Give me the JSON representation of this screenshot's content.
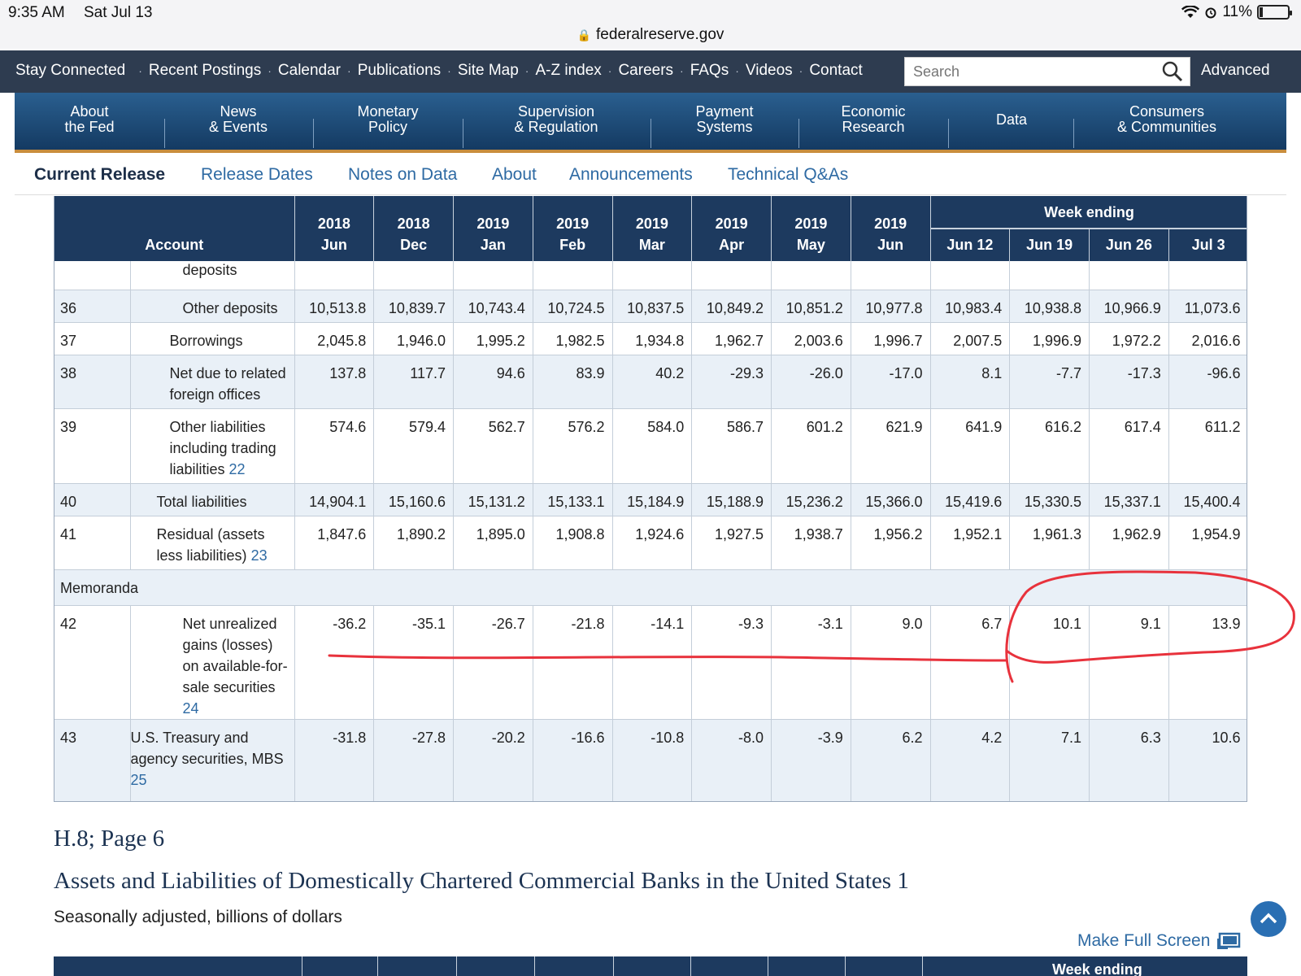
{
  "status_bar": {
    "time": "9:35 AM",
    "date": "Sat Jul 13",
    "battery": "11%"
  },
  "url": "federalreserve.gov",
  "utility_nav": {
    "links": [
      "Stay Connected",
      "Recent Postings",
      "Calendar",
      "Publications",
      "Site Map",
      "A-Z index",
      "Careers",
      "FAQs",
      "Videos",
      "Contact"
    ],
    "search_placeholder": "Search",
    "advanced": "Advanced"
  },
  "main_nav": [
    {
      "line1": "About",
      "line2": "the Fed"
    },
    {
      "line1": "News",
      "line2": "& Events"
    },
    {
      "line1": "Monetary",
      "line2": "Policy"
    },
    {
      "line1": "Supervision",
      "line2": "& Regulation"
    },
    {
      "line1": "Payment",
      "line2": "Systems"
    },
    {
      "line1": "Economic",
      "line2": "Research"
    },
    {
      "line1": "Data",
      "line2": ""
    },
    {
      "line1": "Consumers",
      "line2": "& Communities"
    }
  ],
  "sub_nav": [
    "Current Release",
    "Release Dates",
    "Notes on Data",
    "About",
    "Announcements",
    "Technical Q&As"
  ],
  "table": {
    "account_header": "Account",
    "week_ending_header": "Week ending",
    "month_columns": [
      {
        "year": "2018",
        "month": "Jun"
      },
      {
        "year": "2018",
        "month": "Dec"
      },
      {
        "year": "2019",
        "month": "Jan"
      },
      {
        "year": "2019",
        "month": "Feb"
      },
      {
        "year": "2019",
        "month": "Mar"
      },
      {
        "year": "2019",
        "month": "Apr"
      },
      {
        "year": "2019",
        "month": "May"
      },
      {
        "year": "2019",
        "month": "Jun"
      }
    ],
    "week_columns": [
      "Jun 12",
      "Jun 19",
      "Jun 26",
      "Jul 3"
    ],
    "cut_row_label": "deposits",
    "rows": [
      {
        "num": "36",
        "label": "Other deposits",
        "fn": "",
        "indent": 3,
        "values": [
          "10,513.8",
          "10,839.7",
          "10,743.4",
          "10,724.5",
          "10,837.5",
          "10,849.2",
          "10,851.2",
          "10,977.8",
          "10,983.4",
          "10,938.8",
          "10,966.9",
          "11,073.6"
        ]
      },
      {
        "num": "37",
        "label": "Borrowings",
        "fn": "",
        "indent": 2,
        "values": [
          "2,045.8",
          "1,946.0",
          "1,995.2",
          "1,982.5",
          "1,934.8",
          "1,962.7",
          "2,003.6",
          "1,996.7",
          "2,007.5",
          "1,996.9",
          "1,972.2",
          "2,016.6"
        ]
      },
      {
        "num": "38",
        "label": "Net due to related foreign offices",
        "fn": "",
        "indent": 2,
        "values": [
          "137.8",
          "117.7",
          "94.6",
          "83.9",
          "40.2",
          "-29.3",
          "-26.0",
          "-17.0",
          "8.1",
          "-7.7",
          "-17.3",
          "-96.6"
        ]
      },
      {
        "num": "39",
        "label": "Other liabilities including trading liabilities",
        "fn": "22",
        "indent": 2,
        "values": [
          "574.6",
          "579.4",
          "562.7",
          "576.2",
          "584.0",
          "586.7",
          "601.2",
          "621.9",
          "641.9",
          "616.2",
          "617.4",
          "611.2"
        ]
      },
      {
        "num": "40",
        "label": "Total liabilities",
        "fn": "",
        "indent": 1,
        "values": [
          "14,904.1",
          "15,160.6",
          "15,131.2",
          "15,133.1",
          "15,184.9",
          "15,188.9",
          "15,236.2",
          "15,366.0",
          "15,419.6",
          "15,330.5",
          "15,337.1",
          "15,400.4"
        ]
      },
      {
        "num": "41",
        "label": "Residual (assets less liabilities)",
        "fn": "23",
        "indent": 1,
        "values": [
          "1,847.6",
          "1,890.2",
          "1,895.0",
          "1,908.8",
          "1,924.6",
          "1,927.5",
          "1,938.7",
          "1,956.2",
          "1,952.1",
          "1,961.3",
          "1,962.9",
          "1,954.9"
        ]
      }
    ],
    "memoranda_label": "Memoranda",
    "memo_rows": [
      {
        "num": "42",
        "label": "Net unrealized gains (losses) on available-for-sale securities",
        "fn": "24",
        "indent": 3,
        "values": [
          "-36.2",
          "-35.1",
          "-26.7",
          "-21.8",
          "-14.1",
          "-9.3",
          "-3.1",
          "9.0",
          "6.7",
          "10.1",
          "9.1",
          "13.9"
        ]
      },
      {
        "num": "43",
        "label": "U.S. Treasury and agency securities, MBS",
        "fn": "25",
        "indent": 4,
        "values": [
          "-31.8",
          "-27.8",
          "-20.2",
          "-16.6",
          "-10.8",
          "-8.0",
          "-3.9",
          "6.2",
          "4.2",
          "7.1",
          "6.3",
          "10.6"
        ]
      }
    ]
  },
  "section": {
    "page_label": "H.8; Page 6",
    "title": "Assets and Liabilities of Domestically Chartered Commercial Banks in the United States 1",
    "subtitle": "Seasonally adjusted, billions of dollars",
    "full_screen": "Make Full Screen",
    "next_week_header": "Week ending"
  },
  "colors": {
    "annotation": "#e8323c",
    "header_bg": "#1d3a5f",
    "link": "#2e6aa3",
    "nav_accent": "#c98d3d"
  }
}
